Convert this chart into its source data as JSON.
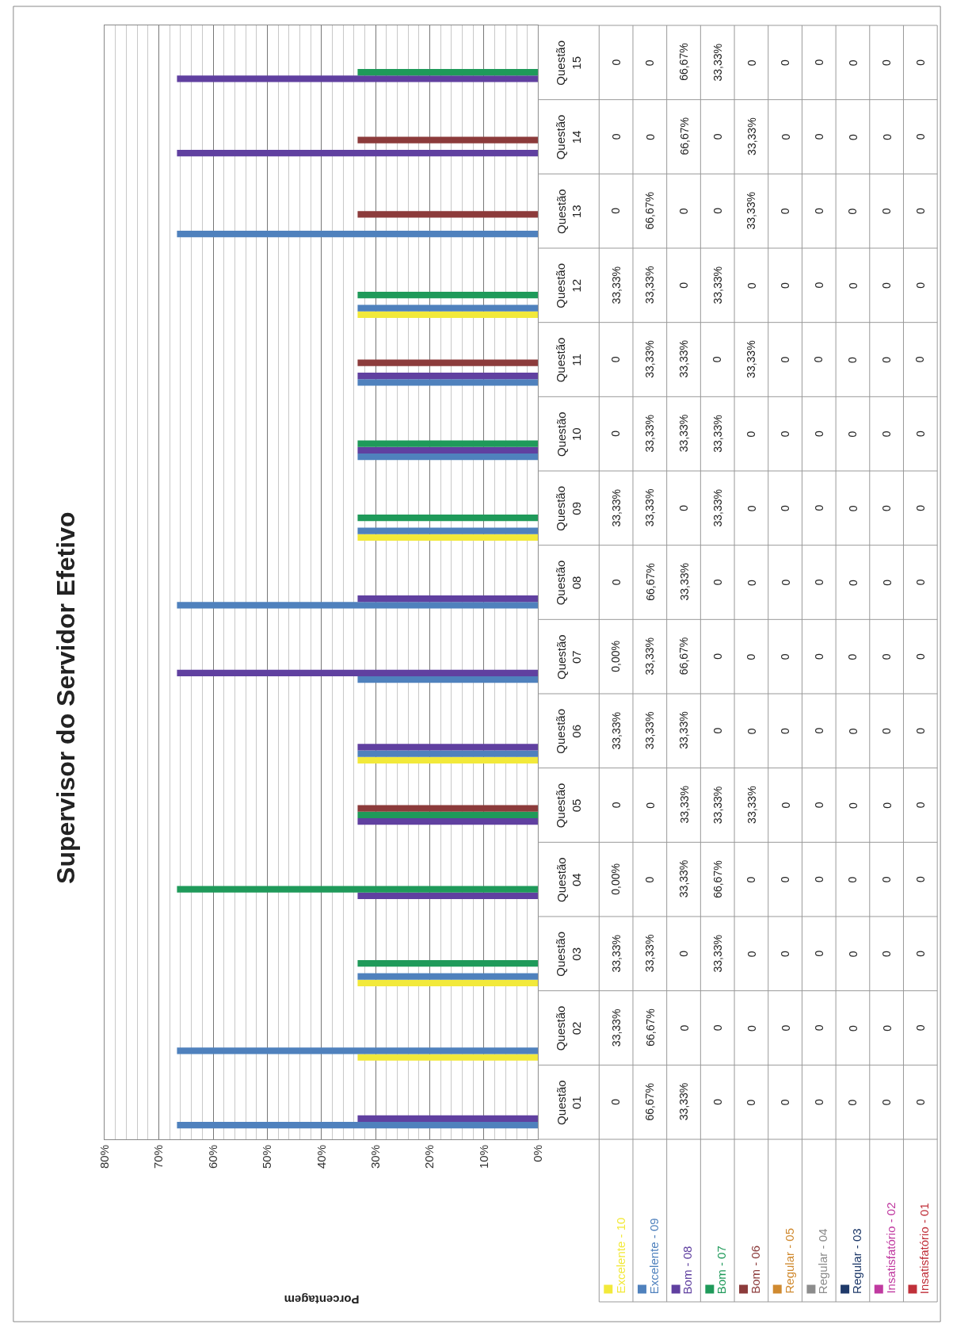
{
  "chart_data": {
    "type": "bar",
    "orientation": "horizontal",
    "title": "Supervisor do Servidor Efetivo",
    "annotations": [
      "Porcentagem"
    ],
    "categories": [
      "Questão 15",
      "Questão 14",
      "Questão 13",
      "Questão 12",
      "Questão 11",
      "Questão 10",
      "Questão 09",
      "Questão 08",
      "Questão 07",
      "Questão 06",
      "Questão 05",
      "Questão 04",
      "Questão 03",
      "Questão 02",
      "Questão 01"
    ],
    "xlim": [
      80,
      0
    ],
    "xticks": [
      {
        "value": 0,
        "label": "0%"
      },
      {
        "value": 10,
        "label": "10%"
      },
      {
        "value": 20,
        "label": "20%"
      },
      {
        "value": 30,
        "label": "30%"
      },
      {
        "value": 40,
        "label": "40%"
      },
      {
        "value": 50,
        "label": "50%"
      },
      {
        "value": 60,
        "label": "60%"
      },
      {
        "value": 70,
        "label": "70%"
      },
      {
        "value": 80,
        "label": "80%"
      }
    ],
    "grid": "x",
    "legend": "bottom",
    "series": [
      {
        "name": "Excelente - 10",
        "color": "#f2e93a",
        "values": [
          0,
          0,
          0,
          33.33,
          0,
          0,
          33.33,
          0,
          0,
          33.33,
          0,
          0,
          33.33,
          33.33,
          0
        ],
        "value_labels": [
          "0",
          "0",
          "0",
          "33,33%",
          "0",
          "0",
          "33,33%",
          "0",
          "0,00%",
          "33,33%",
          "0",
          "0,00%",
          "33,33%",
          "33,33%",
          "0"
        ]
      },
      {
        "name": "Excelente - 09",
        "color": "#4f81bd",
        "values": [
          0,
          0,
          66.67,
          33.33,
          33.33,
          33.33,
          33.33,
          66.67,
          33.33,
          33.33,
          0,
          0,
          33.33,
          66.67,
          66.67
        ],
        "value_labels": [
          "0",
          "0",
          "66,67%",
          "33,33%",
          "33,33%",
          "33,33%",
          "33,33%",
          "66,67%",
          "33,33%",
          "33,33%",
          "0",
          "0",
          "33,33%",
          "66,67%",
          "66,67%"
        ]
      },
      {
        "name": "Bom - 08",
        "color": "#6040a0",
        "values": [
          66.67,
          66.67,
          0,
          0,
          33.33,
          33.33,
          0,
          33.33,
          66.67,
          33.33,
          33.33,
          33.33,
          0,
          0,
          33.33
        ],
        "value_labels": [
          "66,67%",
          "66,67%",
          "0",
          "0",
          "33,33%",
          "33,33%",
          "0",
          "33,33%",
          "66,67%",
          "33,33%",
          "33,33%",
          "33,33%",
          "0",
          "0",
          "33,33%"
        ]
      },
      {
        "name": "Bom - 07",
        "color": "#1f9a5a",
        "values": [
          33.33,
          0,
          0,
          33.33,
          0,
          33.33,
          33.33,
          0,
          0,
          0,
          33.33,
          66.67,
          33.33,
          0,
          0
        ],
        "value_labels": [
          "33,33%",
          "0",
          "0",
          "33,33%",
          "0",
          "33,33%",
          "33,33%",
          "0",
          "0",
          "0",
          "33,33%",
          "66,67%",
          "33,33%",
          "0",
          "0"
        ]
      },
      {
        "name": "Bom - 06",
        "color": "#8c3b3b",
        "values": [
          0,
          33.33,
          33.33,
          0,
          33.33,
          0,
          0,
          0,
          0,
          0,
          33.33,
          0,
          0,
          0,
          0
        ],
        "value_labels": [
          "0",
          "33,33%",
          "33,33%",
          "0",
          "33,33%",
          "0",
          "0",
          "0",
          "0",
          "0",
          "33,33%",
          "0",
          "0",
          "0",
          "0"
        ]
      },
      {
        "name": "Regular - 05",
        "color": "#d08a30",
        "values": [
          0,
          0,
          0,
          0,
          0,
          0,
          0,
          0,
          0,
          0,
          0,
          0,
          0,
          0,
          0
        ],
        "value_labels": [
          "0",
          "0",
          "0",
          "0",
          "0",
          "0",
          "0",
          "0",
          "0",
          "0",
          "0",
          "0",
          "0",
          "0",
          "0"
        ]
      },
      {
        "name": "Regular - 04",
        "color": "#8c8c8c",
        "values": [
          0,
          0,
          0,
          0,
          0,
          0,
          0,
          0,
          0,
          0,
          0,
          0,
          0,
          0,
          0
        ],
        "value_labels": [
          "0",
          "0",
          "0",
          "0",
          "0",
          "0",
          "0",
          "0",
          "0",
          "0",
          "0",
          "0",
          "0",
          "0",
          "0"
        ]
      },
      {
        "name": "Regular - 03",
        "color": "#1f3a6a",
        "values": [
          0,
          0,
          0,
          0,
          0,
          0,
          0,
          0,
          0,
          0,
          0,
          0,
          0,
          0,
          0
        ],
        "value_labels": [
          "0",
          "0",
          "0",
          "0",
          "0",
          "0",
          "0",
          "0",
          "0",
          "0",
          "0",
          "0",
          "0",
          "0",
          "0"
        ]
      },
      {
        "name": "Insatisfatório - 02",
        "color": "#c03aa0",
        "values": [
          0,
          0,
          0,
          0,
          0,
          0,
          0,
          0,
          0,
          0,
          0,
          0,
          0,
          0,
          0
        ],
        "value_labels": [
          "0",
          "0",
          "0",
          "0",
          "0",
          "0",
          "0",
          "0",
          "0",
          "0",
          "0",
          "0",
          "0",
          "0",
          "0"
        ]
      },
      {
        "name": "Insatisfatório - 01",
        "color": "#c0303a",
        "values": [
          0,
          0,
          0,
          0,
          0,
          0,
          0,
          0,
          0,
          0,
          0,
          0,
          0,
          0,
          0
        ],
        "value_labels": [
          "0",
          "0",
          "0",
          "0",
          "0",
          "0",
          "0",
          "0",
          "0",
          "0",
          "0",
          "0",
          "0",
          "0",
          "0"
        ]
      }
    ]
  }
}
